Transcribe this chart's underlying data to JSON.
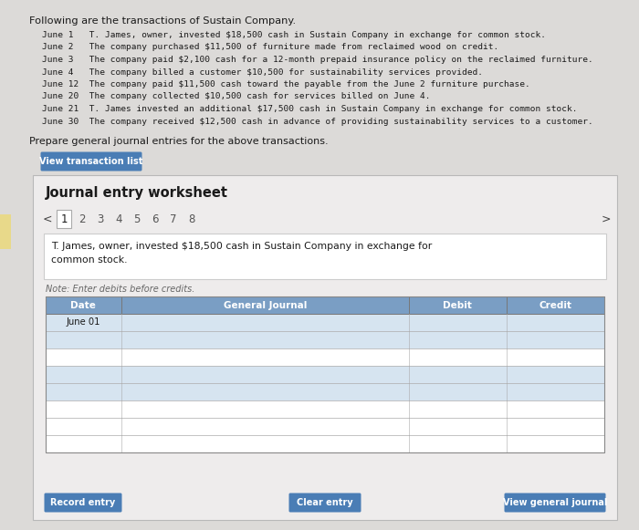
{
  "page_bg": "#dcdad8",
  "title_text": "Following are the transactions of Sustain Company.",
  "transactions": [
    "June 1   T. James, owner, invested $18,500 cash in Sustain Company in exchange for common stock.",
    "June 2   The company purchased $11,500 of furniture made from reclaimed wood on credit.",
    "June 3   The company paid $2,100 cash for a 12-month prepaid insurance policy on the reclaimed furniture.",
    "June 4   The company billed a customer $10,500 for sustainability services provided.",
    "June 12  The company paid $11,500 cash toward the payable from the June 2 furniture purchase.",
    "June 20  The company collected $10,500 cash for services billed on June 4.",
    "June 21  T. James invested an additional $17,500 cash in Sustain Company in exchange for common stock.",
    "June 30  The company received $12,500 cash in advance of providing sustainability services to a customer."
  ],
  "prepare_text": "Prepare general journal entries for the above transactions.",
  "btn_view_transaction": "View transaction list",
  "btn_color": "#4a7db5",
  "worksheet_title": "Journal entry worksheet",
  "tab_numbers": [
    "1",
    "2",
    "3",
    "4",
    "5",
    "6",
    "7",
    "8"
  ],
  "active_tab": "1",
  "transaction_desc_line1": "T. James, owner, invested $18,500 cash in Sustain Company in exchange for",
  "transaction_desc_line2": "common stock.",
  "note_text": "Note: Enter debits before credits.",
  "table_header": [
    "Date",
    "General Journal",
    "Debit",
    "Credit"
  ],
  "date_cell": "June 01",
  "num_rows": 8,
  "btn_record": "Record entry",
  "btn_clear": "Clear entry",
  "btn_view_journal": "View general journal",
  "header_bg": "#7a9ec4",
  "row_bg_alt": "#d6e4f0",
  "row_bg_white": "#ffffff",
  "panel_bg": "#eeecec",
  "panel_border": "#b8b8b8",
  "left_tab_color": "#e8d98a",
  "arrow_color": "#444444",
  "text_color": "#1a1a1a",
  "note_color": "#666666"
}
